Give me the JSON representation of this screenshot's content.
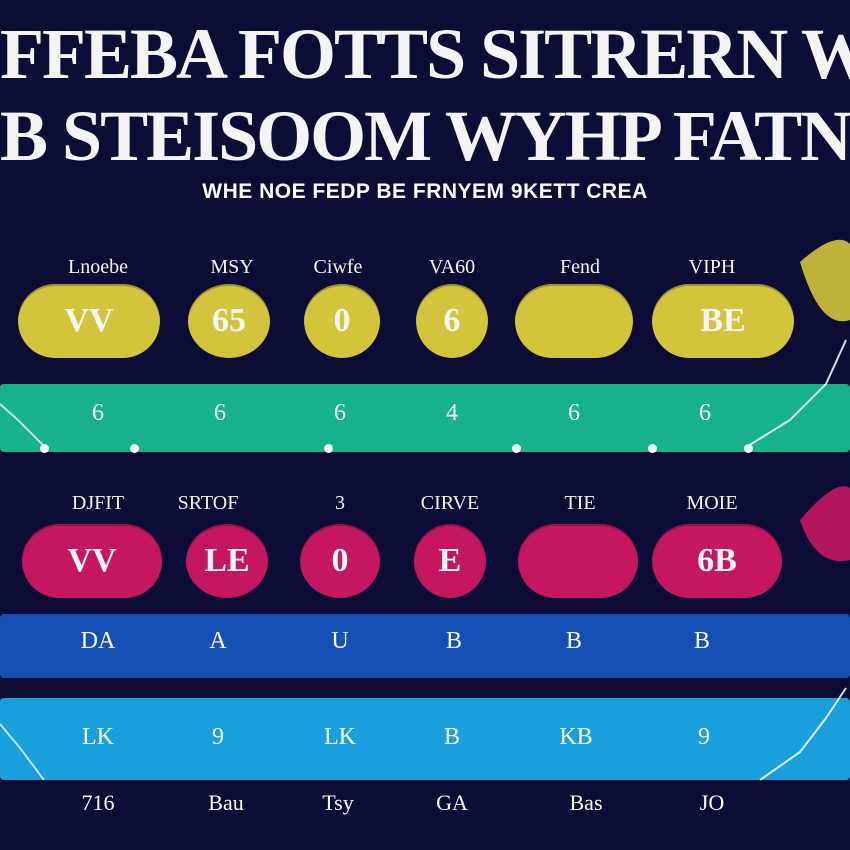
{
  "title": {
    "line1": "FFEBA FOTTS SITRERN WEBS FOR",
    "line2": "B STEISOOM WYHP FATNOSE"
  },
  "subtitle": "WHE NOE FEDP BE FRNYEM 9KETT CREA",
  "rows": {
    "yellow": {
      "color": "#d3c43c",
      "labels": [
        "Lnoebe",
        "MSY",
        "Ciwfe",
        "VA60",
        "Fend",
        "VIPH"
      ],
      "pills": [
        "VV",
        "65",
        "0",
        "6",
        "",
        "BE"
      ]
    },
    "teal": {
      "color": "#16b28c",
      "labels": [
        "6",
        "6",
        "6",
        "4",
        "6",
        "6"
      ],
      "subs": [
        "",
        "",
        "",
        "",
        "",
        ""
      ]
    },
    "pink": {
      "color": "#c4175f",
      "labels": [
        "DJFIT",
        "SRTOF",
        "3",
        "CIRVE",
        "TIE",
        "MOIE"
      ],
      "pills": [
        "VV",
        "LE",
        "0",
        "E",
        "",
        "6B"
      ]
    },
    "blue": {
      "color": "#1550b4",
      "labels": [
        "DA",
        "A",
        "U",
        "B",
        "B",
        "B"
      ]
    },
    "sky": {
      "color": "#199fdc",
      "labels": [
        "LK",
        "9",
        "LK",
        "B",
        "KB",
        "9"
      ]
    }
  },
  "bottom_labels": [
    "716",
    "Bau",
    "Tsy",
    "GA",
    "Bas",
    "JO"
  ]
}
